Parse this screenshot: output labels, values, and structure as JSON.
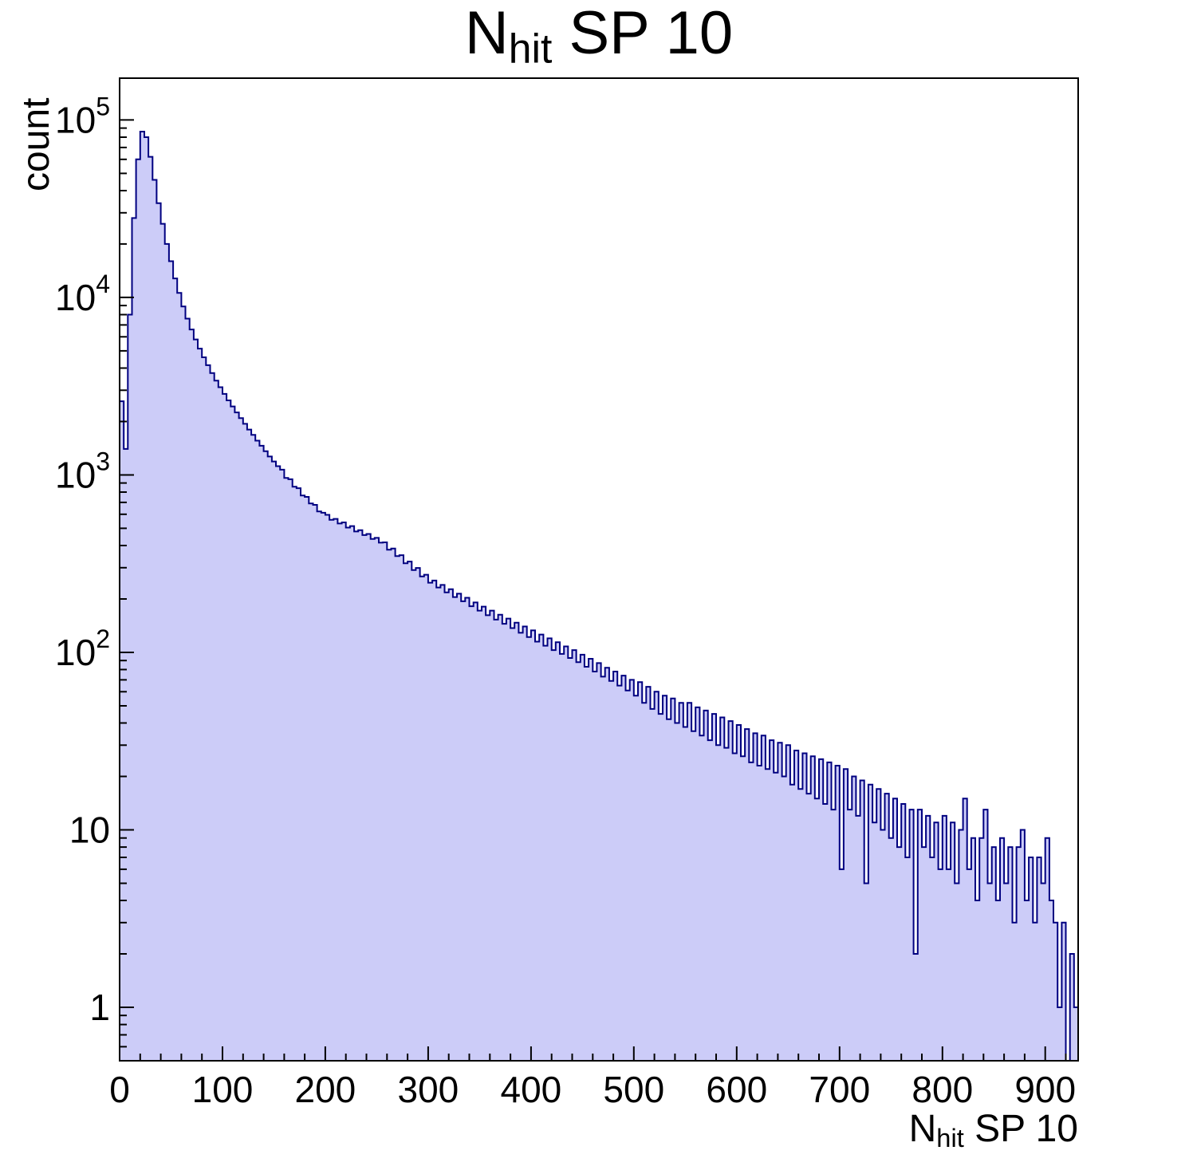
{
  "page": {
    "background": "#ffffff"
  },
  "title": {
    "prefix": "N",
    "subscript": "hit",
    "suffix": " SP 10"
  },
  "axes": {
    "y_label": "count",
    "x_label": {
      "prefix": "N",
      "subscript": "hit",
      "suffix": " SP 10"
    }
  },
  "chart_data": {
    "type": "bar",
    "subtype": "step-histogram-log-y",
    "title": "N_hit SP 10",
    "xlabel": "N_hit SP 10",
    "ylabel": "count",
    "x_range": [
      0,
      932
    ],
    "y_range_log": [
      0.5,
      172000
    ],
    "x_major_ticks": [
      0,
      100,
      200,
      300,
      400,
      500,
      600,
      700,
      800,
      900
    ],
    "x_minor_step": 20,
    "y_major_ticks": [
      1,
      10,
      100,
      1000,
      10000,
      100000
    ],
    "grid": false,
    "legend": "none",
    "fill_color": "#ccccf8",
    "line_color": "#000080",
    "frame_color": "#000000",
    "bin_width": 4,
    "x_start": 0,
    "values": [
      2600,
      1400,
      8000,
      28000,
      60000,
      86000,
      80000,
      62000,
      46000,
      34000,
      26000,
      20000,
      16000,
      12800,
      10600,
      8900,
      7600,
      6600,
      5800,
      5150,
      4600,
      4150,
      3750,
      3400,
      3120,
      2860,
      2630,
      2430,
      2250,
      2090,
      1940,
      1800,
      1680,
      1560,
      1460,
      1360,
      1270,
      1190,
      1120,
      1070,
      962,
      945,
      858,
      842,
      766,
      752,
      690,
      678,
      622,
      612,
      596,
      558,
      565,
      532,
      540,
      505,
      515,
      480,
      488,
      458,
      465,
      436,
      442,
      415,
      417,
      379,
      385,
      349,
      353,
      318,
      325,
      291,
      299,
      268,
      274,
      247,
      254,
      232,
      240,
      218,
      227,
      205,
      214,
      194,
      203,
      182,
      191,
      172,
      181,
      162,
      172,
      153,
      163,
      145,
      155,
      137,
      147,
      129,
      140,
      122,
      133,
      115,
      126,
      109,
      120,
      103,
      114,
      98,
      108,
      93,
      103,
      88,
      97,
      83,
      92,
      78,
      87,
      73,
      82,
      69,
      78,
      65,
      74,
      61,
      70,
      57,
      68,
      52,
      64,
      48,
      60,
      45,
      57,
      42,
      55,
      40,
      52,
      38,
      52,
      36,
      49,
      34,
      47,
      32,
      45,
      30,
      43,
      29,
      41,
      27,
      39,
      26,
      37,
      24,
      35,
      23,
      34,
      22,
      32,
      21,
      31,
      20,
      30,
      18,
      28,
      17,
      27,
      16,
      26,
      15,
      25,
      14,
      24,
      13,
      23,
      6,
      22,
      13,
      20,
      12,
      19,
      5,
      18,
      11,
      17,
      10,
      16,
      9,
      15,
      8,
      14,
      7,
      13,
      2,
      13,
      8,
      12,
      7,
      11,
      6,
      12,
      6,
      11,
      5,
      10,
      15,
      6,
      9,
      4,
      9,
      13,
      5,
      8,
      4,
      9,
      5,
      8,
      3,
      8,
      10,
      4,
      7,
      3,
      7,
      5,
      9,
      4,
      3,
      1,
      3,
      0,
      2,
      1
    ]
  }
}
